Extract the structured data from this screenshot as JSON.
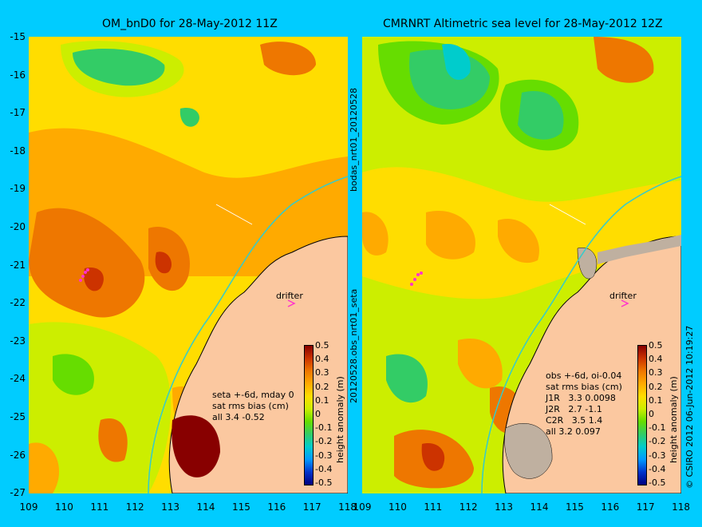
{
  "left_panel": {
    "title": "OM_bnD0 for 28-May-2012 11Z",
    "stats": [
      "seta +-6d, mday 0",
      "sat rms bias (cm)",
      "all 3.4 -0.52"
    ],
    "drifter_label": "drifter",
    "colorbar_label": "height anomaly (m)"
  },
  "right_panel": {
    "title": "CMRNRT Altimetric sea level  for 28-May-2012 12Z",
    "stats": [
      "obs +-6d, oi-0.04",
      "sat rms bias (cm)",
      "J1R   3.3 0.0098",
      "J2R   2.7 -1.1",
      "C2R   3.5 1.4",
      "all 3.2 0.097"
    ],
    "drifter_label": "drifter",
    "colorbar_label": "height anomaly (m)"
  },
  "side_text_top": "bodas_nrt01_20120528",
  "side_text_bottom": "20120528.obs_nrt01_seta",
  "credit": "© CSIRO 2012   06-Jun-2012 10:19:27",
  "y_ticks": [
    "-15",
    "-16",
    "-17",
    "-18",
    "-19",
    "-20",
    "-21",
    "-22",
    "-23",
    "-24",
    "-25",
    "-26",
    "-27"
  ],
  "x_ticks_left": [
    "109",
    "110",
    "111",
    "112",
    "113",
    "114",
    "115",
    "116",
    "117",
    "118"
  ],
  "x_ticks_right": [
    "109",
    "110",
    "111",
    "112",
    "113",
    "114",
    "115",
    "116",
    "117",
    "118"
  ],
  "colorbar_ticks": [
    "0.5",
    "0.4",
    "0.3",
    "0.2",
    "0.1",
    "0",
    "-0.1",
    "-0.2",
    "-0.3",
    "-0.4",
    "-0.5"
  ],
  "colors": {
    "background": "#00ccff",
    "land": "#fbc8a0",
    "colorbar": [
      "#000080",
      "#0033cc",
      "#0099ff",
      "#00cccc",
      "#33cc66",
      "#66dd00",
      "#ccee00",
      "#ffdd00",
      "#ffaa00",
      "#ee7700",
      "#cc3300",
      "#880000"
    ]
  }
}
